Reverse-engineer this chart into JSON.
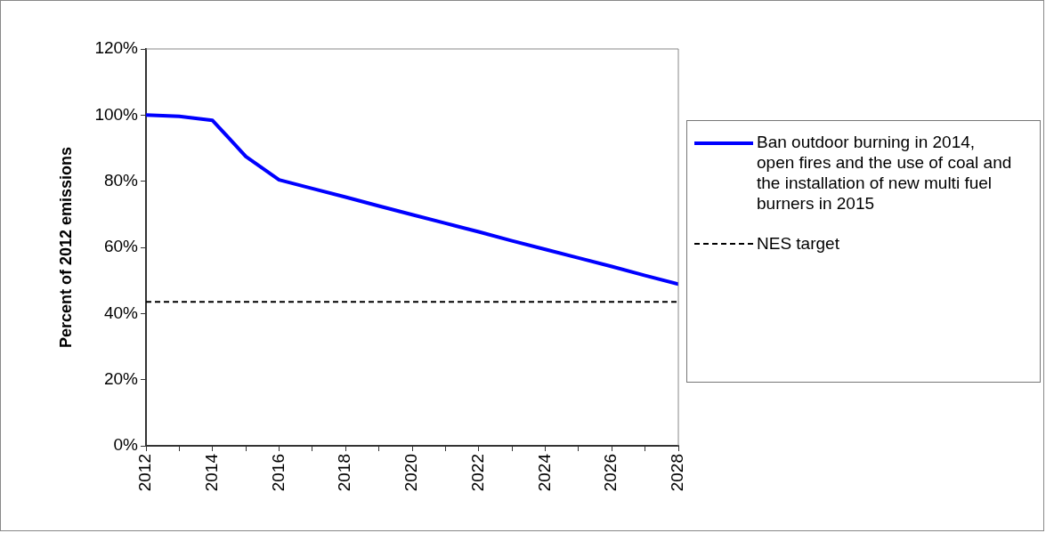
{
  "chart_data": {
    "type": "line",
    "ylabel": "Percent of 2012 emissions",
    "x": [
      2012,
      2013,
      2014,
      2015,
      2016,
      2017,
      2018,
      2019,
      2020,
      2021,
      2022,
      2023,
      2024,
      2025,
      2026,
      2027,
      2028
    ],
    "series": [
      {
        "name": "Ban outdoor burning in 2014, open fires and the use of coal and the installation of new multi fuel burners in 2015",
        "color": "#0000ff",
        "values": [
          100,
          99.6,
          98.4,
          87.5,
          80.4,
          77.8,
          75.2,
          72.5,
          69.9,
          67.3,
          64.7,
          62.0,
          59.4,
          56.8,
          54.2,
          51.5,
          48.9
        ]
      }
    ],
    "xlim": [
      2012,
      2028
    ],
    "xticks": [
      2012,
      {
        "value": 2013,
        "label": null
      },
      2014,
      {
        "value": 2015,
        "label": null
      },
      2016,
      {
        "value": 2017,
        "label": null
      },
      2018,
      {
        "value": 2019,
        "label": null
      },
      2020,
      {
        "value": 2021,
        "label": null
      },
      2022,
      {
        "value": 2023,
        "label": null
      },
      2024,
      {
        "value": 2025,
        "label": null
      },
      2026,
      {
        "value": 2027,
        "label": null
      },
      2028
    ],
    "ylim": [
      0,
      120
    ],
    "yticks": [
      {
        "value": 0,
        "label": "0%"
      },
      {
        "value": 20,
        "label": "20%"
      },
      {
        "value": 40,
        "label": "40%"
      },
      {
        "value": 60,
        "label": "60%"
      },
      {
        "value": 80,
        "label": "80%"
      },
      {
        "value": 100,
        "label": "100%"
      },
      {
        "value": 120,
        "label": "120%"
      }
    ],
    "ref_lines": [
      {
        "axis": "y",
        "value": 43.5,
        "label": "NES target",
        "color": "#000000",
        "line_style": "dashed"
      }
    ],
    "grid": false,
    "legend": "right",
    "marker": "none",
    "line_style": "solid"
  }
}
